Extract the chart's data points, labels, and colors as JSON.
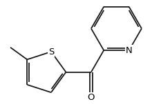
{
  "background_color": "#ffffff",
  "bond_color": "#1a1a1a",
  "atom_labels": {
    "S": {
      "text": "S",
      "fontsize": 9.5,
      "color": "#000000"
    },
    "N": {
      "text": "N",
      "fontsize": 9.5,
      "color": "#000000"
    },
    "O": {
      "text": "O",
      "fontsize": 9.5,
      "color": "#000000"
    }
  },
  "line_width": 1.3,
  "figsize": [
    2.2,
    1.51
  ],
  "dpi": 100
}
